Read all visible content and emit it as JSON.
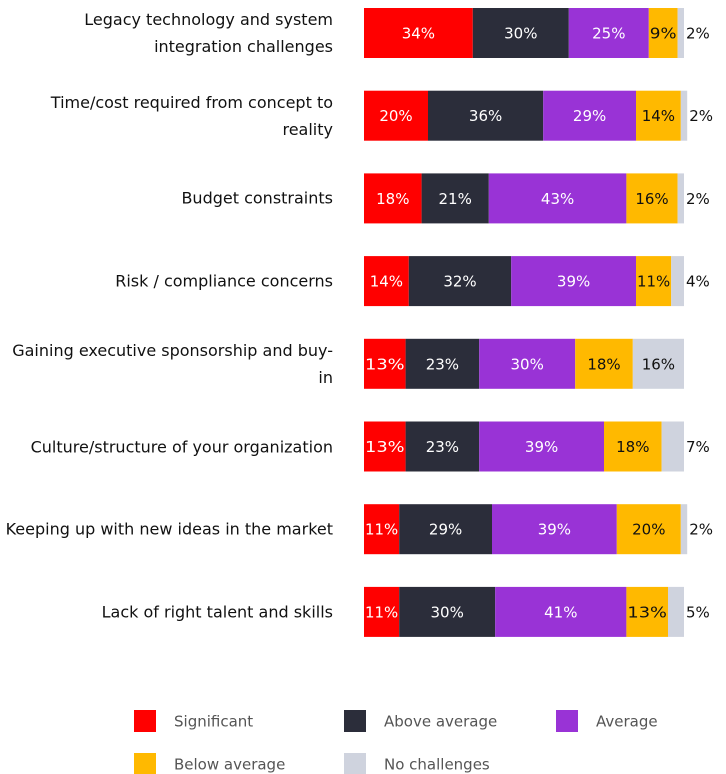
{
  "chart_data": {
    "type": "stacked-bar-horizontal",
    "categories": [
      "Legacy technology and system integration challenges",
      "Time/cost required from concept to reality",
      "Budget constraints",
      "Risk / compliance concerns",
      "Gaining executive sponsorship and buy-in",
      "Culture/structure of your organization",
      "Keeping up with new ideas in the market",
      "Lack of right talent and skills"
    ],
    "xlim": [
      0,
      100
    ],
    "series": [
      {
        "name": "Significant",
        "color": "#ff0000",
        "values": [
          34,
          20,
          18,
          14,
          13,
          13,
          11,
          11
        ],
        "value_labels": [
          "34%",
          "20%",
          "18%",
          "14%",
          "13%",
          "13%",
          "11%",
          "11%"
        ]
      },
      {
        "name": "Above average",
        "color": "#2b2d3a",
        "values": [
          30,
          36,
          21,
          32,
          23,
          23,
          29,
          30
        ],
        "value_labels": [
          "30%",
          "36%",
          "21%",
          "32%",
          "23%",
          "23%",
          "29%",
          "30%"
        ]
      },
      {
        "name": "Average",
        "color": "#9933d6",
        "values": [
          25,
          29,
          43,
          39,
          30,
          39,
          39,
          41
        ],
        "value_labels": [
          "25%",
          "29%",
          "43%",
          "39%",
          "30%",
          "39%",
          "39%",
          "41%"
        ]
      },
      {
        "name": "Below average",
        "color": "#ffb900",
        "values": [
          9,
          14,
          16,
          11,
          18,
          18,
          20,
          13
        ],
        "value_labels": [
          "9%",
          "14%",
          "16%",
          "11%",
          "18%",
          "18%",
          "20%",
          "13%"
        ]
      },
      {
        "name": "No challenges",
        "color": "#cfd3de",
        "values": [
          2,
          2,
          2,
          4,
          16,
          7,
          2,
          5
        ],
        "value_labels": [
          "2%",
          "2%",
          "2%",
          "4%",
          "16%",
          "7%",
          "2%",
          "5%"
        ]
      }
    ]
  }
}
